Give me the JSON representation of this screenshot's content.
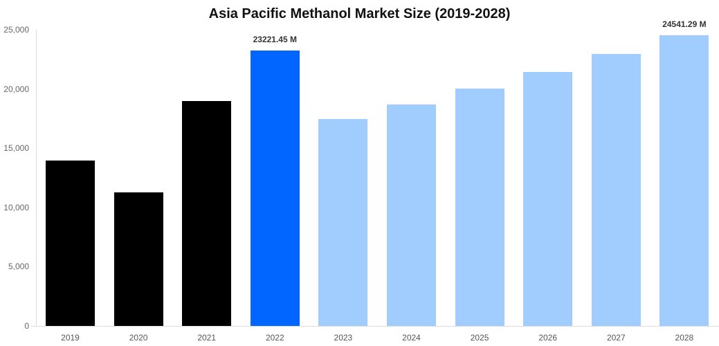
{
  "chart_data": {
    "type": "bar",
    "title": "Asia Pacific Methanol Market Size (2019-2028)",
    "xlabel": "",
    "ylabel": "",
    "categories": [
      "2019",
      "2020",
      "2021",
      "2022",
      "2023",
      "2024",
      "2025",
      "2026",
      "2027",
      "2028"
    ],
    "values": [
      13960,
      11270,
      18980,
      23221.45,
      17470,
      18690,
      20040,
      21440,
      22960,
      24541.29
    ],
    "colors": [
      "#000000",
      "#000000",
      "#000000",
      "#0066ff",
      "#a0cdfe",
      "#a0cdfe",
      "#a0cdfe",
      "#a0cdfe",
      "#a0cdfe",
      "#a0cdfe"
    ],
    "data_labels": [
      {
        "category": "2022",
        "text": "23221.45 M"
      },
      {
        "category": "2028",
        "text": "24541.29 M"
      }
    ],
    "ylim": [
      0,
      25000
    ],
    "yticks": [
      "0",
      "5,000",
      "10,000",
      "15,000",
      "20,000",
      "25,000"
    ],
    "grid": false,
    "legend": "none"
  }
}
